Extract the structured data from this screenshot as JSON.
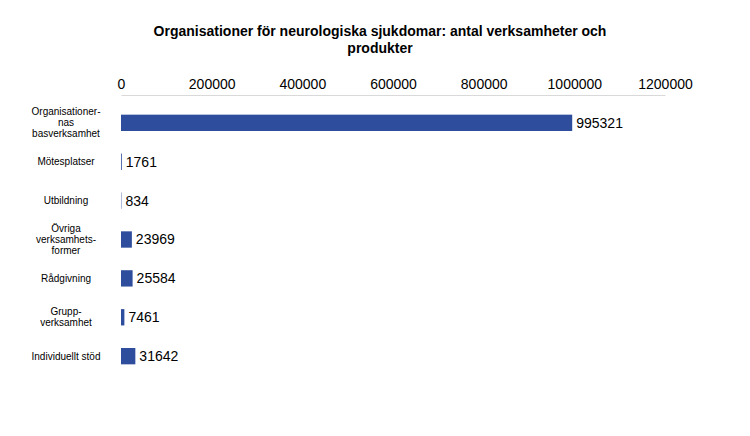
{
  "chart_data": {
    "type": "bar",
    "orientation": "horizontal",
    "title": "Organisationer för neurologiska sjukdomar: antal verksamheter och\nprodukter",
    "categories": [
      "Organisationer-\nnas\nbasverksamhet",
      "Mötesplatser",
      "Utbildning",
      "Övriga\nverksamhets-\nformer",
      "Rådgivning",
      "Grupp-\nverksamhet",
      "Individuellt stöd"
    ],
    "values": [
      995321,
      1761,
      834,
      23969,
      25584,
      7461,
      31642
    ],
    "color": "#2e4d9c",
    "xlim": [
      0,
      1200000
    ],
    "xticks": [
      0,
      200000,
      400000,
      600000,
      800000,
      1000000,
      1200000
    ],
    "grid": false,
    "data_labels": true
  }
}
